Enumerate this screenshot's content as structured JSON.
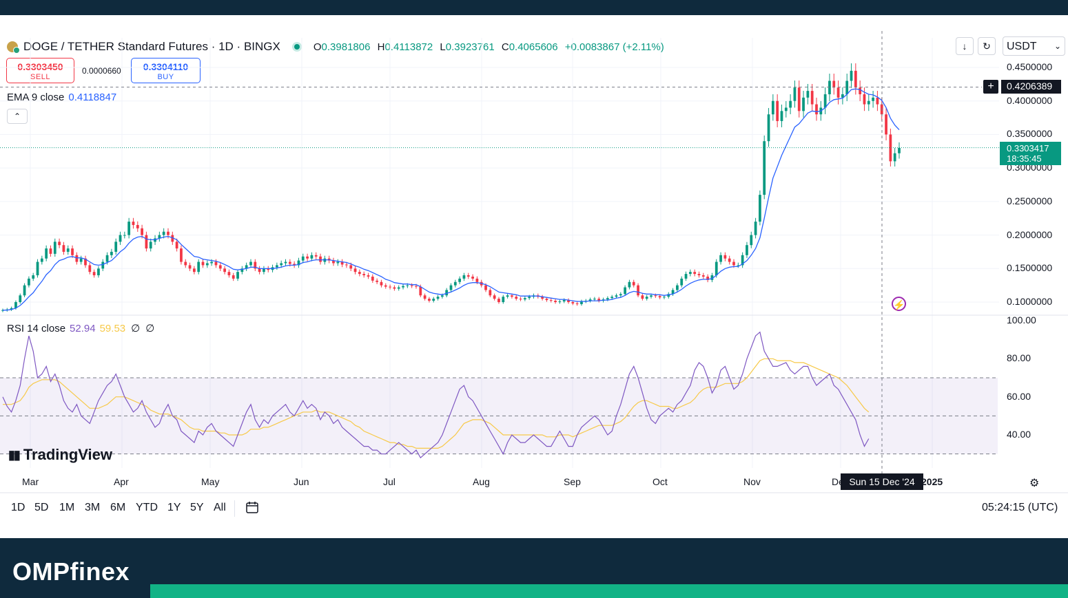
{
  "header": {
    "symbol": "DOGE / TETHER Standard Futures · 1D · BINGX",
    "ohlc": [
      {
        "k": "O",
        "v": "0.3981806"
      },
      {
        "k": "H",
        "v": "0.4113872"
      },
      {
        "k": "L",
        "v": "0.3923761"
      },
      {
        "k": "C",
        "v": "0.4065606"
      }
    ],
    "change": "+0.0083867 (+2.11%)"
  },
  "trade": {
    "sell_price": "0.3303450",
    "sell_label": "SELL",
    "spread": "0.0000660",
    "buy_price": "0.3304110",
    "buy_label": "BUY"
  },
  "ema": {
    "label": "EMA 9 close",
    "value": "0.4118847"
  },
  "collapse_icon": "chevron-up-icon",
  "rsi": {
    "label": "RSI 14 close",
    "value": "52.94",
    "ma_value": "59.53",
    "extra1": "∅",
    "extra2": "∅"
  },
  "brand_watermark": "TradingView",
  "toolbar": {
    "download_icon": "download-icon",
    "replay_icon": "refresh-icon",
    "currency": "USDT"
  },
  "price_axis": [
    "0.4500000",
    "0.4000000",
    "0.3500000",
    "0.3000000",
    "0.2500000",
    "0.2000000",
    "0.1500000",
    "0.1000000"
  ],
  "crosshair_price": "0.4206389",
  "last_price": {
    "price": "0.3303417",
    "countdown": "18:35:45"
  },
  "rsi_axis": [
    "100.00",
    "80.00",
    "60.00",
    "40.00"
  ],
  "time_axis": [
    "Mar",
    "Apr",
    "May",
    "Jun",
    "Jul",
    "Aug",
    "Sep",
    "Oct",
    "Nov",
    "De",
    "2025"
  ],
  "crosshair_date": "Sun 15 Dec '24",
  "timeframes": [
    "1D",
    "5D",
    "1M",
    "3M",
    "6M",
    "YTD",
    "1Y",
    "5Y",
    "All"
  ],
  "clock": "05:24:15 (UTC)",
  "footer_brand": "OMPfinex",
  "colors": {
    "up": "#089981",
    "down": "#f23645",
    "ema": "#2962ff",
    "rsi": "#7e57c2",
    "rsi_ma": "#f7c948",
    "footer": "#0f2a3d",
    "accent": "#12b386"
  },
  "chart_data": {
    "type": "candlestick",
    "title": "DOGE / TETHER Standard Futures · 1D · BINGX",
    "ylim": [
      0.08,
      0.48
    ],
    "close": [
      0.088,
      0.089,
      0.091,
      0.1,
      0.11,
      0.125,
      0.135,
      0.14,
      0.16,
      0.165,
      0.18,
      0.172,
      0.19,
      0.185,
      0.175,
      0.18,
      0.17,
      0.16,
      0.165,
      0.155,
      0.145,
      0.14,
      0.15,
      0.16,
      0.17,
      0.175,
      0.19,
      0.2,
      0.2,
      0.22,
      0.215,
      0.21,
      0.2,
      0.18,
      0.19,
      0.195,
      0.2,
      0.205,
      0.2,
      0.19,
      0.18,
      0.16,
      0.155,
      0.15,
      0.145,
      0.16,
      0.155,
      0.158,
      0.16,
      0.155,
      0.15,
      0.145,
      0.14,
      0.135,
      0.145,
      0.15,
      0.155,
      0.16,
      0.15,
      0.145,
      0.15,
      0.148,
      0.152,
      0.155,
      0.158,
      0.16,
      0.157,
      0.155,
      0.162,
      0.168,
      0.165,
      0.17,
      0.168,
      0.16,
      0.165,
      0.162,
      0.158,
      0.16,
      0.156,
      0.155,
      0.15,
      0.145,
      0.142,
      0.14,
      0.138,
      0.132,
      0.13,
      0.125,
      0.123,
      0.122,
      0.12,
      0.122,
      0.124,
      0.125,
      0.124,
      0.123,
      0.11,
      0.105,
      0.102,
      0.105,
      0.108,
      0.11,
      0.118,
      0.125,
      0.13,
      0.135,
      0.14,
      0.138,
      0.135,
      0.13,
      0.125,
      0.118,
      0.11,
      0.105,
      0.1,
      0.108,
      0.11,
      0.108,
      0.105,
      0.104,
      0.106,
      0.108,
      0.11,
      0.108,
      0.105,
      0.103,
      0.102,
      0.1,
      0.101,
      0.103,
      0.1,
      0.098,
      0.097,
      0.101,
      0.102,
      0.104,
      0.105,
      0.102,
      0.104,
      0.106,
      0.108,
      0.11,
      0.112,
      0.122,
      0.13,
      0.125,
      0.11,
      0.105,
      0.108,
      0.11,
      0.109,
      0.107,
      0.108,
      0.112,
      0.118,
      0.125,
      0.135,
      0.142,
      0.145,
      0.142,
      0.14,
      0.138,
      0.133,
      0.14,
      0.16,
      0.17,
      0.165,
      0.16,
      0.155,
      0.155,
      0.17,
      0.185,
      0.2,
      0.22,
      0.26,
      0.34,
      0.38,
      0.4,
      0.37,
      0.385,
      0.39,
      0.4,
      0.42,
      0.385,
      0.405,
      0.415,
      0.395,
      0.38,
      0.39,
      0.41,
      0.43,
      0.42,
      0.405,
      0.41,
      0.43,
      0.445,
      0.42,
      0.41,
      0.395,
      0.4,
      0.405,
      0.395,
      0.38,
      0.35,
      0.31,
      0.322,
      0.33
    ],
    "ema9": [
      0.088,
      0.088,
      0.089,
      0.091,
      0.095,
      0.101,
      0.108,
      0.114,
      0.123,
      0.131,
      0.141,
      0.147,
      0.156,
      0.162,
      0.164,
      0.167,
      0.168,
      0.166,
      0.166,
      0.164,
      0.16,
      0.156,
      0.155,
      0.156,
      0.159,
      0.162,
      0.168,
      0.175,
      0.18,
      0.188,
      0.194,
      0.197,
      0.198,
      0.194,
      0.193,
      0.193,
      0.195,
      0.197,
      0.198,
      0.196,
      0.193,
      0.186,
      0.18,
      0.174,
      0.168,
      0.167,
      0.164,
      0.163,
      0.162,
      0.161,
      0.159,
      0.156,
      0.153,
      0.149,
      0.148,
      0.149,
      0.15,
      0.152,
      0.152,
      0.15,
      0.15,
      0.15,
      0.15,
      0.151,
      0.152,
      0.154,
      0.155,
      0.155,
      0.156,
      0.159,
      0.16,
      0.162,
      0.163,
      0.163,
      0.163,
      0.163,
      0.162,
      0.161,
      0.16,
      0.159,
      0.157,
      0.154,
      0.152,
      0.149,
      0.147,
      0.144,
      0.141,
      0.138,
      0.134,
      0.132,
      0.129,
      0.128,
      0.127,
      0.127,
      0.126,
      0.126,
      0.123,
      0.119,
      0.115,
      0.113,
      0.112,
      0.111,
      0.113,
      0.115,
      0.118,
      0.121,
      0.125,
      0.128,
      0.129,
      0.129,
      0.128,
      0.126,
      0.123,
      0.119,
      0.115,
      0.114,
      0.113,
      0.112,
      0.111,
      0.109,
      0.109,
      0.109,
      0.109,
      0.109,
      0.108,
      0.107,
      0.106,
      0.105,
      0.104,
      0.104,
      0.103,
      0.102,
      0.101,
      0.101,
      0.101,
      0.102,
      0.102,
      0.102,
      0.103,
      0.103,
      0.104,
      0.106,
      0.107,
      0.11,
      0.114,
      0.116,
      0.115,
      0.113,
      0.112,
      0.112,
      0.111,
      0.111,
      0.11,
      0.111,
      0.112,
      0.115,
      0.119,
      0.124,
      0.128,
      0.131,
      0.133,
      0.134,
      0.134,
      0.135,
      0.14,
      0.146,
      0.15,
      0.152,
      0.153,
      0.153,
      0.157,
      0.162,
      0.17,
      0.18,
      0.196,
      0.225,
      0.256,
      0.285,
      0.302,
      0.319,
      0.333,
      0.347,
      0.361,
      0.366,
      0.374,
      0.382,
      0.385,
      0.384,
      0.385,
      0.39,
      0.398,
      0.402,
      0.403,
      0.404,
      0.41,
      0.417,
      0.418,
      0.417,
      0.413,
      0.41,
      0.409,
      0.406,
      0.401,
      0.39,
      0.374,
      0.364,
      0.357
    ],
    "rsi14": [
      60,
      55,
      52,
      58,
      66,
      80,
      92,
      84,
      70,
      72,
      76,
      68,
      72,
      66,
      58,
      54,
      52,
      56,
      50,
      48,
      46,
      52,
      58,
      62,
      66,
      68,
      72,
      66,
      60,
      56,
      52,
      54,
      58,
      52,
      48,
      44,
      46,
      52,
      56,
      50,
      48,
      42,
      40,
      38,
      36,
      42,
      40,
      44,
      46,
      42,
      40,
      38,
      36,
      34,
      40,
      46,
      52,
      56,
      48,
      44,
      48,
      46,
      50,
      52,
      54,
      56,
      52,
      50,
      54,
      58,
      54,
      56,
      54,
      48,
      52,
      50,
      46,
      48,
      44,
      42,
      40,
      38,
      36,
      34,
      34,
      32,
      32,
      30,
      30,
      32,
      34,
      36,
      34,
      32,
      30,
      32,
      28,
      30,
      32,
      34,
      36,
      40,
      46,
      52,
      58,
      64,
      66,
      60,
      58,
      54,
      50,
      46,
      42,
      38,
      34,
      30,
      36,
      40,
      38,
      36,
      36,
      38,
      40,
      38,
      36,
      34,
      34,
      38,
      42,
      38,
      34,
      34,
      40,
      44,
      46,
      48,
      50,
      48,
      44,
      40,
      42,
      50,
      56,
      64,
      72,
      76,
      70,
      62,
      54,
      48,
      46,
      50,
      52,
      54,
      52,
      56,
      58,
      62,
      66,
      74,
      78,
      76,
      70,
      62,
      66,
      74,
      76,
      70,
      64,
      66,
      72,
      80,
      86,
      92,
      94,
      84,
      80,
      76,
      76,
      77,
      78,
      74,
      72,
      74,
      76,
      76,
      70,
      66,
      68,
      70,
      72,
      66,
      64,
      60,
      56,
      52,
      48,
      40,
      34,
      38
    ],
    "rsi_ma": [
      56,
      56,
      56,
      57,
      58,
      61,
      65,
      67,
      68,
      69,
      69,
      69,
      69,
      68,
      66,
      64,
      62,
      60,
      58,
      56,
      54,
      54,
      54,
      55,
      56,
      58,
      60,
      60,
      60,
      59,
      58,
      57,
      56,
      55,
      53,
      52,
      51,
      51,
      51,
      50,
      49,
      48,
      46,
      44,
      43,
      43,
      42,
      42,
      42,
      42,
      41,
      41,
      40,
      40,
      40,
      40,
      41,
      43,
      43,
      43,
      44,
      44,
      45,
      46,
      47,
      48,
      49,
      50,
      51,
      52,
      52,
      52,
      53,
      52,
      52,
      52,
      51,
      50,
      49,
      48,
      47,
      45,
      44,
      42,
      41,
      40,
      39,
      38,
      37,
      36,
      36,
      35,
      35,
      34,
      34,
      33,
      33,
      33,
      33,
      33,
      33,
      34,
      36,
      38,
      40,
      43,
      46,
      47,
      48,
      48,
      48,
      47,
      46,
      44,
      42,
      40,
      40,
      40,
      40,
      40,
      40,
      40,
      40,
      40,
      40,
      39,
      39,
      39,
      40,
      40,
      40,
      39,
      40,
      41,
      42,
      43,
      44,
      45,
      45,
      45,
      45,
      46,
      47,
      49,
      52,
      55,
      57,
      58,
      58,
      57,
      56,
      55,
      55,
      55,
      54,
      54,
      55,
      56,
      57,
      59,
      62,
      64,
      65,
      65,
      65,
      66,
      67,
      67,
      67,
      67,
      68,
      70,
      73,
      76,
      79,
      80,
      80,
      80,
      79,
      79,
      79,
      79,
      78,
      78,
      78,
      77,
      76,
      75,
      74,
      73,
      72,
      71,
      70,
      68,
      66,
      63,
      60,
      57,
      54,
      52
    ],
    "rsi_levels": [
      70,
      50,
      30
    ]
  }
}
